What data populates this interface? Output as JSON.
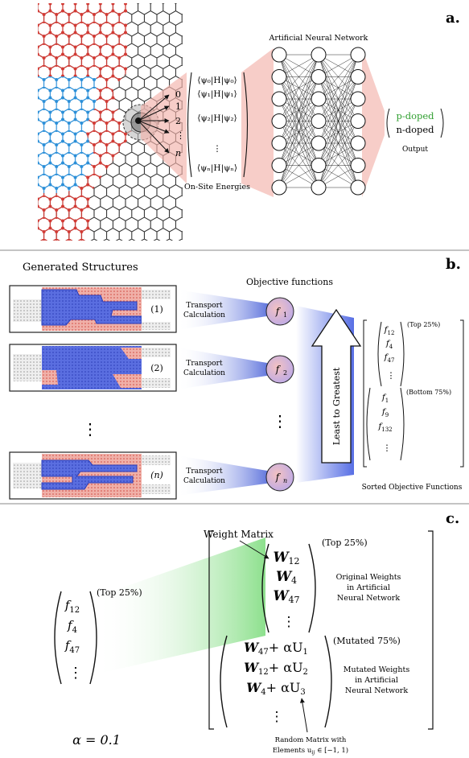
{
  "panel_a": {
    "label": "a.",
    "ann_title": "Artificial Neural Network",
    "site_indices": [
      "0",
      "1",
      "2",
      "⋮",
      "n"
    ],
    "energies": [
      "⟨ψ₀|H|ψ₀⟩",
      "⟨ψ₁|H|ψ₁⟩",
      "⟨ψ₂|H|ψ₂⟩",
      "⋮",
      "⟨ψₙ|H|ψₙ⟩"
    ],
    "energies_caption": "On-Site Energies",
    "outputs": [
      "p-doped",
      "n-doped"
    ],
    "output_caption": "Output",
    "colors": {
      "p_region": "#e03c3c",
      "n_region": "#2f8fd6",
      "ann_fan": "#f4b7b0",
      "output_green": "#2e9e2e"
    }
  },
  "panel_b": {
    "label": "b.",
    "generated_title": "Generated Structures",
    "objective_title": "Objective functions",
    "structures": [
      {
        "index": "(1)",
        "transport": [
          "Transport",
          "Calculation"
        ],
        "f": "f",
        "f_sub": "1"
      },
      {
        "index": "(2)",
        "transport": [
          "Transport",
          "Calculation"
        ],
        "f": "f",
        "f_sub": "2"
      },
      {
        "index": "(n)",
        "transport": [
          "Transport",
          "Calculation"
        ],
        "f": "f",
        "f_sub": "n"
      }
    ],
    "vdots": "⋮",
    "arrow_text": "Least to Greatest",
    "top_group": [
      [
        "f",
        "12"
      ],
      [
        "f",
        "4"
      ],
      [
        "f",
        "47"
      ]
    ],
    "top_label": "(Top 25%)",
    "bottom_group": [
      [
        "f",
        "1"
      ],
      [
        "f",
        "9"
      ],
      [
        "f",
        "132"
      ]
    ],
    "bottom_label": "(Bottom 75%)",
    "sorted_caption": "Sorted Objective Functions"
  },
  "panel_c": {
    "label": "c.",
    "weight_matrix_label": "Weight Matrix",
    "left_vector": [
      [
        "f",
        "12"
      ],
      [
        "f",
        "4"
      ],
      [
        "f",
        "47"
      ]
    ],
    "left_label": "(Top 25%)",
    "top_weights": [
      [
        "W",
        "12"
      ],
      [
        "W",
        "4"
      ],
      [
        "W",
        "47"
      ]
    ],
    "top_label": "(Top 25%)",
    "top_desc": [
      "Original Weights",
      "in Artificial",
      "Neural Network"
    ],
    "mutated_weights": [
      [
        "W",
        "47",
        "U",
        "1"
      ],
      [
        "W",
        "12",
        "U",
        "2"
      ],
      [
        "W",
        "4",
        "U",
        "3"
      ]
    ],
    "mutated_label": "(Mutated 75%)",
    "mutated_desc": [
      "Mutated Weights",
      "in Artificial",
      "Neural Network"
    ],
    "random_caption": [
      "Random Matrix with",
      "Elements u",
      "ij",
      " ∈ [−1, 1)"
    ],
    "alpha": "α = 0.1",
    "alpha_term": "+ αU"
  }
}
